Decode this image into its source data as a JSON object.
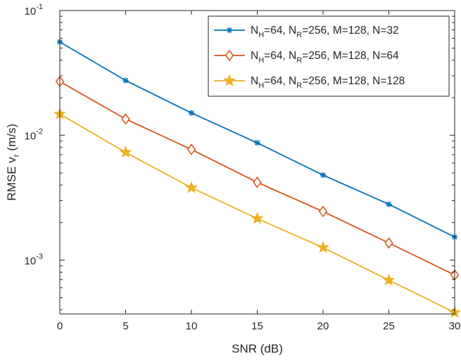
{
  "chart_data": {
    "type": "line",
    "title": "",
    "xlabel": "SNR (dB)",
    "ylabel": {
      "main": "RMSE v",
      "sub": "r",
      "tail": " (m/s)"
    },
    "x": [
      0,
      5,
      10,
      15,
      20,
      25,
      30
    ],
    "xlim": [
      0,
      30
    ],
    "xticks": [
      0,
      5,
      10,
      15,
      20,
      25,
      30
    ],
    "yscale": "log",
    "ylim": [
      0.00037,
      0.1
    ],
    "yticks": [
      {
        "value": 0.1,
        "base": "10",
        "exp": "-1"
      },
      {
        "value": 0.01,
        "base": "10",
        "exp": "-2"
      },
      {
        "value": 0.001,
        "base": "10",
        "exp": "-3"
      }
    ],
    "grid": false,
    "legend_position": "top-right",
    "series": [
      {
        "name": "NH=64, NR=256, M=128, N=32",
        "label": [
          [
            "N",
            ""
          ],
          [
            "H",
            "sub"
          ],
          [
            "=64, N",
            ""
          ],
          [
            "R",
            "sub"
          ],
          [
            "=256, M=128, N=32",
            ""
          ]
        ],
        "color": "#0072BD",
        "marker": "asterisk",
        "values": [
          0.056,
          0.0275,
          0.0151,
          0.0087,
          0.0048,
          0.0028,
          0.00153
        ]
      },
      {
        "name": "NH=64, NR=256, M=128, N=64",
        "label": [
          [
            "N",
            ""
          ],
          [
            "H",
            "sub"
          ],
          [
            "=64, N",
            ""
          ],
          [
            "R",
            "sub"
          ],
          [
            "=256, M=128, N=64",
            ""
          ]
        ],
        "color": "#D95319",
        "marker": "diamond",
        "values": [
          0.027,
          0.0135,
          0.0077,
          0.0042,
          0.00245,
          0.00137,
          0.00076
        ]
      },
      {
        "name": "NH=64, NR=256, M=128, N=128",
        "label": [
          [
            "N",
            ""
          ],
          [
            "H",
            "sub"
          ],
          [
            "=64, N",
            ""
          ],
          [
            "R",
            "sub"
          ],
          [
            "=256, M=128, N=128",
            ""
          ]
        ],
        "color": "#EDB120",
        "marker": "star",
        "values": [
          0.0148,
          0.0073,
          0.0038,
          0.00215,
          0.00126,
          0.00069,
          0.00038
        ]
      }
    ]
  }
}
